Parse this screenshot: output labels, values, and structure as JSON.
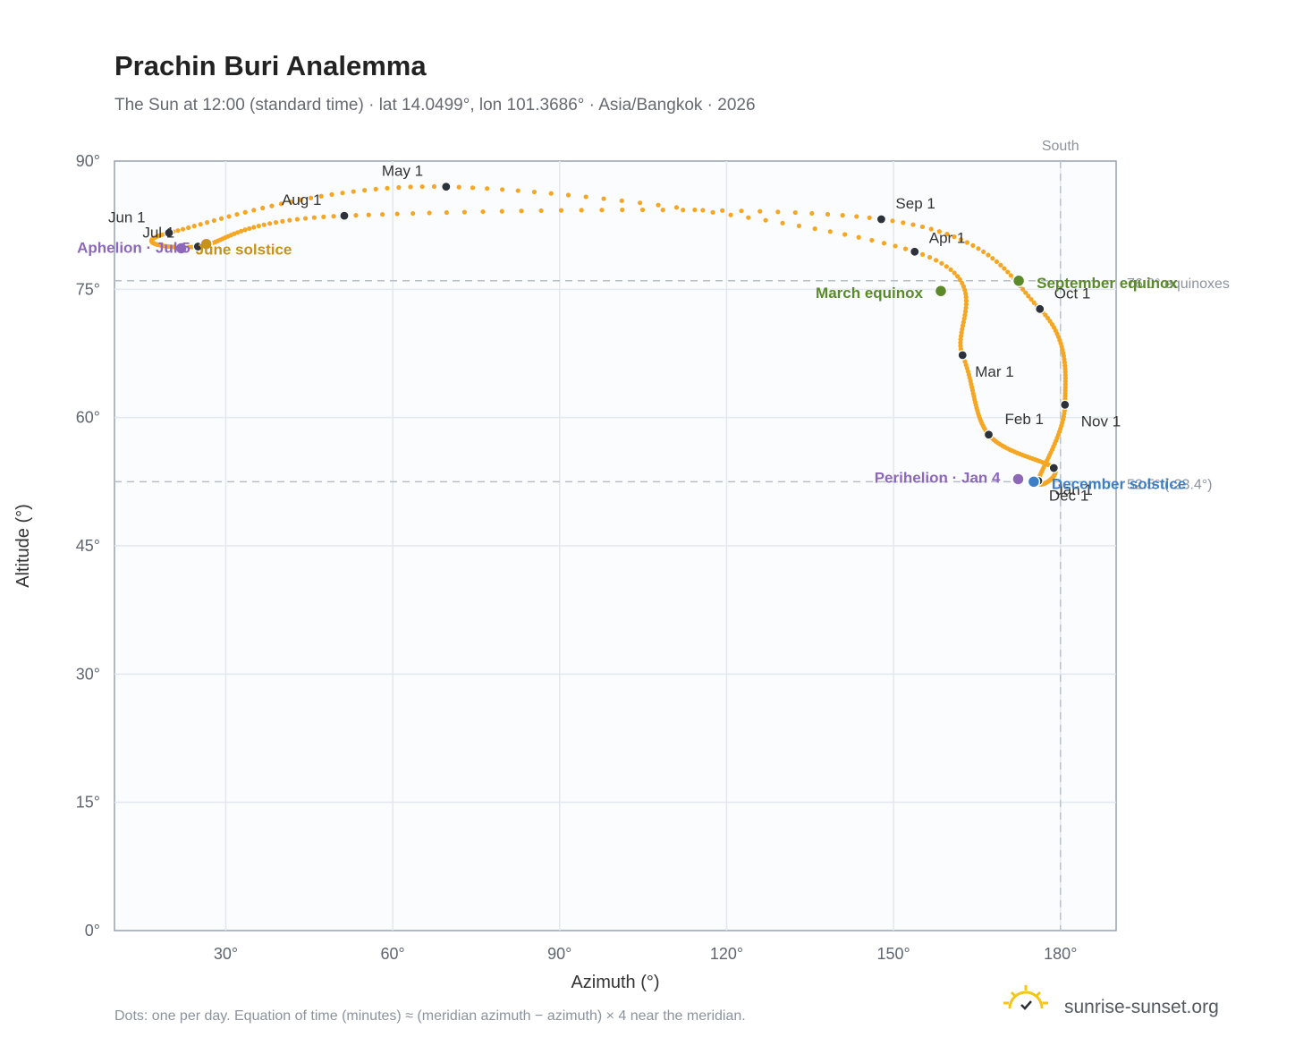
{
  "chart_data": {
    "type": "scatter",
    "title": "Prachin Buri Analemma",
    "subtitle": "The Sun at 12:00 (standard time) · lat 14.0499°, lon 101.3686° · Asia/Bangkok · 2026",
    "xlabel": "Azimuth (°)",
    "ylabel": "Altitude (°)",
    "xlim": [
      10,
      190
    ],
    "ylim": [
      0,
      90
    ],
    "xticks": [
      30,
      60,
      90,
      120,
      150,
      180
    ],
    "yticks": [
      0,
      15,
      30,
      45,
      60,
      75,
      90
    ],
    "xtick_labels": [
      "30°",
      "60°",
      "90°",
      "120°",
      "150°",
      "180°"
    ],
    "ytick_labels": [
      "0°",
      "15°",
      "30°",
      "45°",
      "60°",
      "75°",
      "90°"
    ],
    "grid": true,
    "series_color": "#f5a623",
    "month_points": [
      {
        "label": "Jan 1",
        "az": 178.8,
        "alt": 54.1
      },
      {
        "label": "Feb 1",
        "az": 167.1,
        "alt": 58.0
      },
      {
        "label": "Mar 1",
        "az": 162.4,
        "alt": 67.3
      },
      {
        "label": "Apr 1",
        "az": 153.8,
        "alt": 79.4
      },
      {
        "label": "May 1",
        "az": 69.6,
        "alt": 87.0
      },
      {
        "label": "Jun 1",
        "az": 19.8,
        "alt": 81.6
      },
      {
        "label": "Jul 1",
        "az": 25.0,
        "alt": 80.0
      },
      {
        "label": "Aug 1",
        "az": 51.3,
        "alt": 83.6
      },
      {
        "label": "Sep 1",
        "az": 147.8,
        "alt": 83.2
      },
      {
        "label": "Oct 1",
        "az": 176.3,
        "alt": 72.7
      },
      {
        "label": "Nov 1",
        "az": 180.8,
        "alt": 61.5
      },
      {
        "label": "Dec 1",
        "az": 176.0,
        "alt": 52.6
      }
    ],
    "events": [
      {
        "label": "March equinox",
        "az": 158.5,
        "alt": 74.8,
        "color": "#5a8a2a"
      },
      {
        "label": "September equinox",
        "az": 172.5,
        "alt": 76.0,
        "color": "#5a8a2a"
      },
      {
        "label": "June solstice",
        "az": 26.5,
        "alt": 80.3,
        "color": "#c89218"
      },
      {
        "label": "December solstice",
        "az": 175.2,
        "alt": 52.5,
        "color": "#3d7ec4"
      },
      {
        "label": "Aphelion · Jul 5",
        "az": 22.0,
        "alt": 79.8,
        "color": "#8e68b8"
      },
      {
        "label": "Perihelion · Jan 4",
        "az": 172.4,
        "alt": 52.8,
        "color": "#8e68b8"
      }
    ],
    "reference_lines": [
      {
        "orientation": "vertical",
        "az": 180,
        "label": "South"
      },
      {
        "orientation": "horizontal",
        "alt": 76.0,
        "label": "76.0° equinoxes"
      },
      {
        "orientation": "horizontal",
        "alt": 52.5,
        "label": "52.5° (-23.4°)"
      }
    ],
    "footnote": "Dots: one per day. Equation of time (minutes) ≈ (meridian azimuth − azimuth) × 4 near the meridian.",
    "brand": "sunrise-sunset.org"
  }
}
